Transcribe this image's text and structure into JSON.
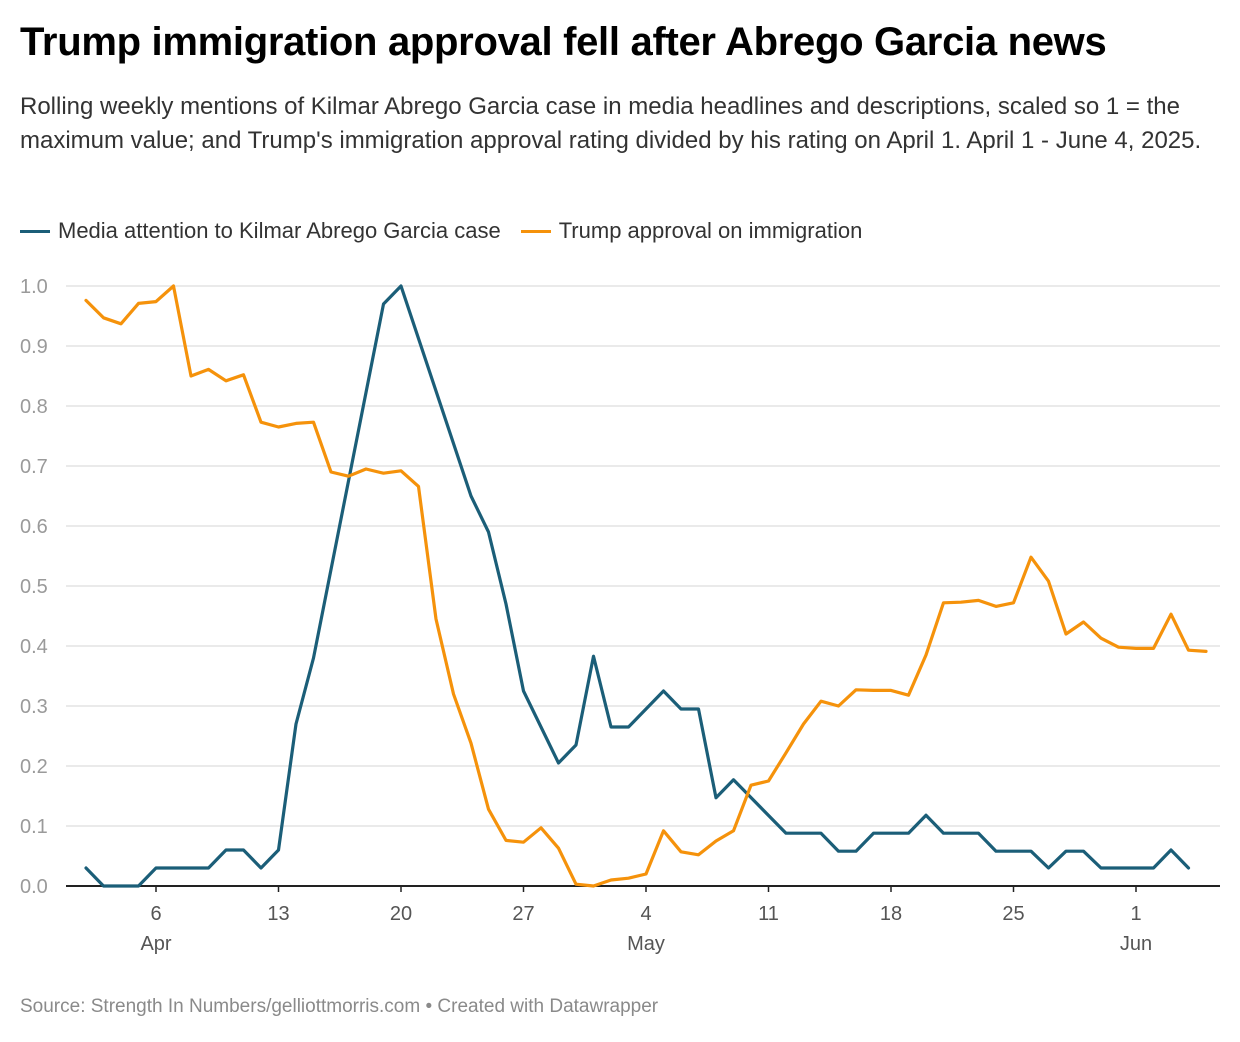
{
  "header": {
    "title": "Trump immigration approval fell after Abrego Garcia news",
    "subtitle": "Rolling weekly mentions of Kilmar Abrego Garcia case in media headlines and descriptions, scaled so 1 = the maximum value; and Trump's immigration approval rating divided by his rating on April 1. April 1 - June 4, 2025."
  },
  "footer": {
    "source": "Source: Strength In Numbers/gelliottmorris.com • Created with Datawrapper"
  },
  "colors": {
    "media": "#1b5e78",
    "approval": "#f5920b",
    "grid": "#e4e4e4",
    "axis": "#222222"
  },
  "chart_data": {
    "type": "line",
    "title": "Trump immigration approval fell after Abrego Garcia news",
    "xlabel": "",
    "ylabel": "",
    "x_start": "2025-04-02",
    "x_end": "2025-06-04",
    "ylim": [
      0,
      1
    ],
    "y_ticks": [
      "0.0",
      "0.1",
      "0.2",
      "0.3",
      "0.4",
      "0.5",
      "0.6",
      "0.7",
      "0.8",
      "0.9",
      "1.0"
    ],
    "x_ticks": [
      {
        "day": 4,
        "label": "6",
        "sub": "Apr"
      },
      {
        "day": 11,
        "label": "13",
        "sub": ""
      },
      {
        "day": 18,
        "label": "20",
        "sub": ""
      },
      {
        "day": 25,
        "label": "27",
        "sub": ""
      },
      {
        "day": 32,
        "label": "4",
        "sub": "May"
      },
      {
        "day": 39,
        "label": "11",
        "sub": ""
      },
      {
        "day": 46,
        "label": "18",
        "sub": ""
      },
      {
        "day": 53,
        "label": "25",
        "sub": ""
      },
      {
        "day": 60,
        "label": "1",
        "sub": "Jun"
      }
    ],
    "grid": true,
    "legend": "top-left",
    "series": [
      {
        "name": "Media attention to Kilmar Abrego Garcia case",
        "color": "#1b5e78",
        "points": [
          [
            0,
            0.03
          ],
          [
            1,
            0.0
          ],
          [
            2,
            0.0
          ],
          [
            3,
            0.0
          ],
          [
            4,
            0.03
          ],
          [
            5,
            0.03
          ],
          [
            6,
            0.03
          ],
          [
            7,
            0.03
          ],
          [
            8,
            0.06
          ],
          [
            9,
            0.06
          ],
          [
            10,
            0.03
          ],
          [
            11,
            0.06
          ],
          [
            12,
            0.27
          ],
          [
            13,
            0.38
          ],
          [
            17,
            0.97
          ],
          [
            18,
            1.0
          ],
          [
            22,
            0.65
          ],
          [
            23,
            0.59
          ],
          [
            24,
            0.47
          ],
          [
            25,
            0.325
          ],
          [
            27,
            0.205
          ],
          [
            28,
            0.235
          ],
          [
            29,
            0.383
          ],
          [
            30,
            0.265
          ],
          [
            31,
            0.265
          ],
          [
            33,
            0.325
          ],
          [
            34,
            0.295
          ],
          [
            35,
            0.295
          ],
          [
            36,
            0.147
          ],
          [
            37,
            0.177
          ],
          [
            40,
            0.088
          ],
          [
            41,
            0.088
          ],
          [
            42,
            0.088
          ],
          [
            43,
            0.058
          ],
          [
            44,
            0.058
          ],
          [
            45,
            0.088
          ],
          [
            46,
            0.088
          ],
          [
            47,
            0.088
          ],
          [
            48,
            0.118
          ],
          [
            49,
            0.088
          ],
          [
            50,
            0.088
          ],
          [
            51,
            0.088
          ],
          [
            52,
            0.058
          ],
          [
            53,
            0.058
          ],
          [
            54,
            0.058
          ],
          [
            55,
            0.03
          ],
          [
            56,
            0.058
          ],
          [
            57,
            0.058
          ],
          [
            58,
            0.03
          ],
          [
            59,
            0.03
          ],
          [
            60,
            0.03
          ],
          [
            61,
            0.03
          ],
          [
            62,
            0.06
          ],
          [
            63,
            0.03
          ]
        ]
      },
      {
        "name": "Trump approval on immigration",
        "color": "#f5920b",
        "points": [
          [
            0,
            0.976
          ],
          [
            1,
            0.947
          ],
          [
            2,
            0.937
          ],
          [
            3,
            0.971
          ],
          [
            4,
            0.974
          ],
          [
            5,
            1.0
          ],
          [
            6,
            0.85
          ],
          [
            7,
            0.861
          ],
          [
            8,
            0.842
          ],
          [
            9,
            0.852
          ],
          [
            10,
            0.773
          ],
          [
            11,
            0.765
          ],
          [
            12,
            0.771
          ],
          [
            13,
            0.773
          ],
          [
            14,
            0.69
          ],
          [
            15,
            0.683
          ],
          [
            16,
            0.695
          ],
          [
            17,
            0.688
          ],
          [
            18,
            0.692
          ],
          [
            19,
            0.666
          ],
          [
            20,
            0.445
          ],
          [
            21,
            0.32
          ],
          [
            22,
            0.238
          ],
          [
            23,
            0.128
          ],
          [
            24,
            0.076
          ],
          [
            25,
            0.073
          ],
          [
            26,
            0.097
          ],
          [
            27,
            0.063
          ],
          [
            28,
            0.003
          ],
          [
            29,
            0.0
          ],
          [
            30,
            0.01
          ],
          [
            31,
            0.013
          ],
          [
            32,
            0.02
          ],
          [
            33,
            0.092
          ],
          [
            34,
            0.057
          ],
          [
            35,
            0.052
          ],
          [
            36,
            0.075
          ],
          [
            37,
            0.092
          ],
          [
            38,
            0.168
          ],
          [
            39,
            0.175
          ],
          [
            40,
            0.222
          ],
          [
            41,
            0.27
          ],
          [
            42,
            0.308
          ],
          [
            43,
            0.3
          ],
          [
            44,
            0.327
          ],
          [
            45,
            0.326
          ],
          [
            46,
            0.326
          ],
          [
            47,
            0.318
          ],
          [
            48,
            0.385
          ],
          [
            49,
            0.472
          ],
          [
            50,
            0.473
          ],
          [
            51,
            0.476
          ],
          [
            52,
            0.466
          ],
          [
            53,
            0.472
          ],
          [
            54,
            0.548
          ],
          [
            55,
            0.508
          ],
          [
            56,
            0.42
          ],
          [
            57,
            0.44
          ],
          [
            58,
            0.413
          ],
          [
            59,
            0.398
          ],
          [
            60,
            0.396
          ],
          [
            61,
            0.396
          ],
          [
            62,
            0.453
          ],
          [
            63,
            0.393
          ],
          [
            64,
            0.391
          ]
        ]
      }
    ]
  }
}
